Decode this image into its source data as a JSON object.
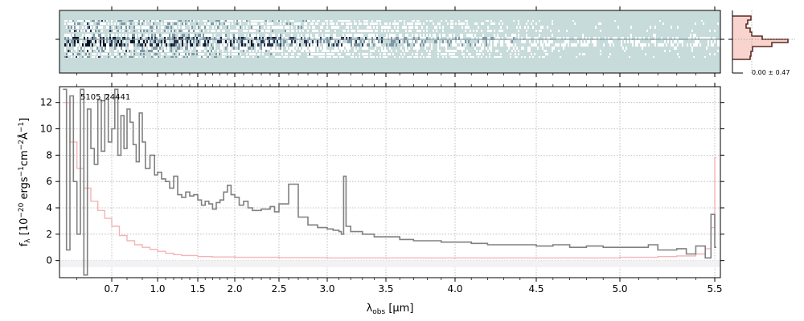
{
  "chart_data": {
    "type": "line",
    "panels": {
      "spectrum_2d": {
        "description_shown": "2D spectrum image",
        "colormap": [
          "#ffffff",
          "#c7dbda",
          "#7f99a6",
          "#2a3550",
          "#0b1022"
        ]
      },
      "profile": {
        "label": "0.00 ± 0.47",
        "colors": {
          "line": "#5a2a20",
          "fill": "#f7c9c3"
        }
      },
      "spectrum_1d": {
        "object_label": "5105_24441",
        "xlabel": "λobs [μm]",
        "xlabel_main": "λ",
        "xlabel_sub": "obs",
        "xlabel_units": " [μm]",
        "ylabel": "fλ [10−20 ergs−1cm−2Å−1]",
        "ylabel_f": "f",
        "ylabel_sub": "λ",
        "ylabel_open": " [10",
        "ylabel_exp1": "−20",
        "ylabel_mid1": " ergs",
        "ylabel_exp2": "−1",
        "ylabel_mid2": "cm",
        "ylabel_exp3": "−2",
        "ylabel_mid3": "Å",
        "ylabel_exp4": "−1",
        "ylabel_close": "]",
        "x_scale": "spectral-pixel (nonlinear)",
        "xlim": [
          0.55,
          5.52
        ],
        "ylim": [
          -1.3,
          13.2
        ],
        "x_tick_labels": [
          "0.7",
          "1.0",
          "1.5",
          "2.0",
          "2.5",
          "3.0",
          "3.5",
          "4.0",
          "4.5",
          "5.0",
          "5.5"
        ],
        "x_ticks": [
          0.7,
          1.0,
          1.5,
          2.0,
          2.5,
          3.0,
          3.5,
          4.0,
          4.5,
          5.0,
          5.5
        ],
        "y_tick_labels": [
          "0",
          "2",
          "4",
          "6",
          "8",
          "10",
          "12"
        ],
        "y_ticks": [
          0,
          2,
          4,
          6,
          8,
          10,
          12
        ],
        "grid": true,
        "series": [
          {
            "style": "steps",
            "color": "#808080",
            "x": [
              0.56,
              0.57,
              0.58,
              0.59,
              0.6,
              0.61,
              0.62,
              0.63,
              0.64,
              0.65,
              0.66,
              0.67,
              0.68,
              0.69,
              0.7,
              0.72,
              0.74,
              0.76,
              0.78,
              0.8,
              0.82,
              0.84,
              0.86,
              0.88,
              0.9,
              0.92,
              0.95,
              0.98,
              1.0,
              1.05,
              1.1,
              1.15,
              1.2,
              1.25,
              1.3,
              1.35,
              1.4,
              1.45,
              1.5,
              1.55,
              1.6,
              1.65,
              1.7,
              1.75,
              1.8,
              1.85,
              1.9,
              1.95,
              2.0,
              2.05,
              2.1,
              2.15,
              2.2,
              2.3,
              2.4,
              2.45,
              2.5,
              2.6,
              2.7,
              2.8,
              2.9,
              3.0,
              3.05,
              3.1,
              3.12,
              3.14,
              3.16,
              3.2,
              3.3,
              3.4,
              3.5,
              3.6,
              3.7,
              3.8,
              3.9,
              4.0,
              4.1,
              4.2,
              4.3,
              4.4,
              4.5,
              4.6,
              4.7,
              4.8,
              4.9,
              5.0,
              5.1,
              5.15,
              5.2,
              5.3,
              5.35,
              5.4,
              5.45,
              5.48,
              5.5
            ],
            "y": [
              13.0,
              0.8,
              12.5,
              6.0,
              2.0,
              13.0,
              -1.1,
              11.5,
              8.5,
              7.3,
              12.2,
              8.3,
              12.6,
              9.0,
              10.0,
              13.0,
              8.0,
              11.0,
              8.5,
              11.5,
              10.5,
              8.8,
              7.5,
              11.2,
              9.0,
              7.0,
              8.0,
              6.5,
              6.7,
              6.2,
              6.0,
              5.5,
              6.4,
              5.0,
              4.8,
              5.2,
              4.9,
              5.0,
              4.6,
              4.2,
              4.5,
              4.3,
              3.9,
              4.4,
              4.6,
              5.2,
              5.7,
              5.0,
              4.8,
              4.2,
              4.5,
              4.0,
              3.8,
              3.9,
              4.1,
              3.7,
              4.3,
              5.8,
              3.3,
              2.7,
              2.5,
              2.4,
              2.3,
              2.2,
              2.0,
              6.4,
              2.6,
              2.2,
              2.0,
              1.8,
              1.8,
              1.6,
              1.5,
              1.5,
              1.4,
              1.4,
              1.3,
              1.2,
              1.2,
              1.2,
              1.1,
              1.2,
              1.0,
              1.1,
              1.0,
              1.0,
              1.0,
              1.2,
              0.8,
              0.9,
              0.5,
              1.1,
              0.2,
              3.5,
              1.0
            ]
          },
          {
            "style": "steps",
            "color": "#f4b4b4",
            "x": [
              0.56,
              0.58,
              0.6,
              0.62,
              0.64,
              0.66,
              0.68,
              0.7,
              0.75,
              0.8,
              0.85,
              0.9,
              0.95,
              1.0,
              1.1,
              1.2,
              1.3,
              1.5,
              1.7,
              2.0,
              2.5,
              3.0,
              3.5,
              4.0,
              4.5,
              5.0,
              5.2,
              5.3,
              5.4,
              5.45,
              5.48,
              5.5
            ],
            "y": [
              12.0,
              9.0,
              7.0,
              5.5,
              4.5,
              3.8,
              3.2,
              2.6,
              1.9,
              1.5,
              1.2,
              1.0,
              0.85,
              0.7,
              0.55,
              0.45,
              0.38,
              0.3,
              0.27,
              0.25,
              0.22,
              0.2,
              0.2,
              0.2,
              0.2,
              0.25,
              0.3,
              0.35,
              0.5,
              0.9,
              2.5,
              7.8
            ]
          }
        ]
      }
    }
  }
}
